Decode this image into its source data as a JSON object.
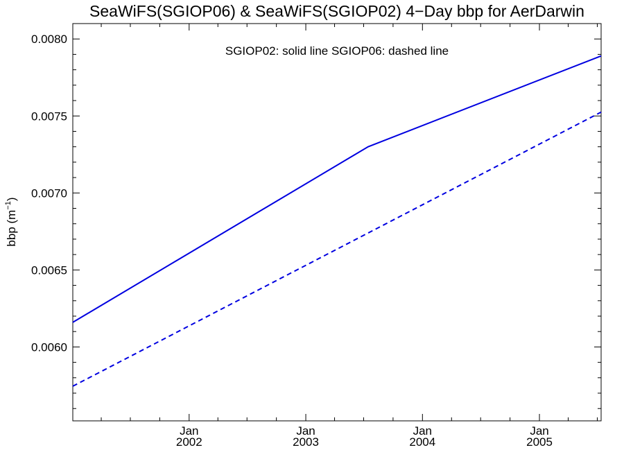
{
  "chart_data": {
    "type": "line",
    "title": "SeaWiFS(SGIOP06) & SeaWiFS(SGIOP02) 4−Day bbp for AerDarwin",
    "annotation": "SGIOP02: solid line   SGIOP06: dashed line",
    "ylabel": "bbp (m",
    "ylabel_sup": "−1",
    "ylabel_close": ")",
    "xlabel": "",
    "xlim": [
      "2001-01-02",
      "2005-07-13"
    ],
    "ylim": [
      0.00552,
      0.0081
    ],
    "y_ticks": [
      0.006,
      0.0065,
      0.007,
      0.0075,
      0.008
    ],
    "y_tick_labels": [
      "0.0060",
      "0.0065",
      "0.0070",
      "0.0075",
      "0.0080"
    ],
    "y_minor_step": 0.0001,
    "x_ticks": [
      {
        "date": "2002-01-01",
        "month": "Jan",
        "year": "2002"
      },
      {
        "date": "2003-01-01",
        "month": "Jan",
        "year": "2003"
      },
      {
        "date": "2004-01-01",
        "month": "Jan",
        "year": "2004"
      },
      {
        "date": "2005-01-01",
        "month": "Jan",
        "year": "2005"
      }
    ],
    "x_minor_months": 3,
    "grid": false,
    "legend": "none",
    "series": [
      {
        "name": "SGIOP02",
        "style": "solid",
        "color": "#0000e0",
        "x": [
          "2001-01-02",
          "2003-07-15",
          "2005-07-13"
        ],
        "y": [
          0.00616,
          0.0073,
          0.00789
        ]
      },
      {
        "name": "SGIOP06",
        "style": "dashed",
        "color": "#0000e0",
        "x": [
          "2001-01-02",
          "2005-07-13"
        ],
        "y": [
          0.005745,
          0.007525
        ]
      }
    ]
  }
}
